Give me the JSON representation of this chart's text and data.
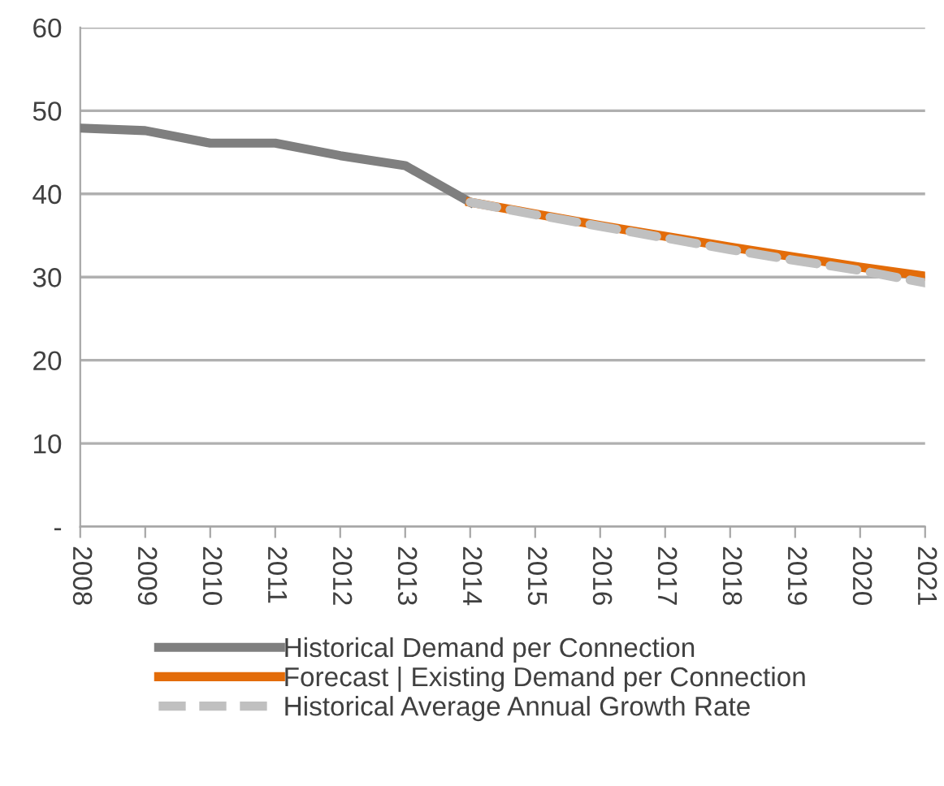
{
  "chart_data": {
    "type": "line",
    "categories": [
      "2008",
      "2009",
      "2010",
      "2011",
      "2012",
      "2013",
      "2014",
      "2015",
      "2016",
      "2017",
      "2018",
      "2019",
      "2020",
      "2021"
    ],
    "series": [
      {
        "name": "Historical Demand per Connection",
        "color": "#7f7f7f",
        "line_style": "solid",
        "values": [
          47.9,
          47.6,
          46.1,
          46.1,
          44.6,
          43.4,
          39.0,
          null,
          null,
          null,
          null,
          null,
          null,
          null
        ]
      },
      {
        "name": "Forecast | Existing Demand per Connection",
        "color": "#e36c09",
        "line_style": "solid",
        "values": [
          null,
          null,
          null,
          null,
          null,
          null,
          39.0,
          37.6,
          36.2,
          34.9,
          33.6,
          32.4,
          31.2,
          30.1
        ]
      },
      {
        "name": "Historical Average Annual Growth Rate",
        "color": "#c0c0c0",
        "line_style": "dashed",
        "values": [
          null,
          null,
          null,
          null,
          null,
          null,
          39.0,
          37.5,
          36.1,
          34.7,
          33.3,
          32.0,
          30.8,
          29.3
        ]
      }
    ],
    "ylim": [
      0,
      60
    ],
    "yticks": [
      {
        "value": 0,
        "label": "-"
      },
      10,
      20,
      30,
      40,
      50,
      60
    ],
    "grid": "y",
    "legend": "bottom",
    "marker": "none"
  }
}
